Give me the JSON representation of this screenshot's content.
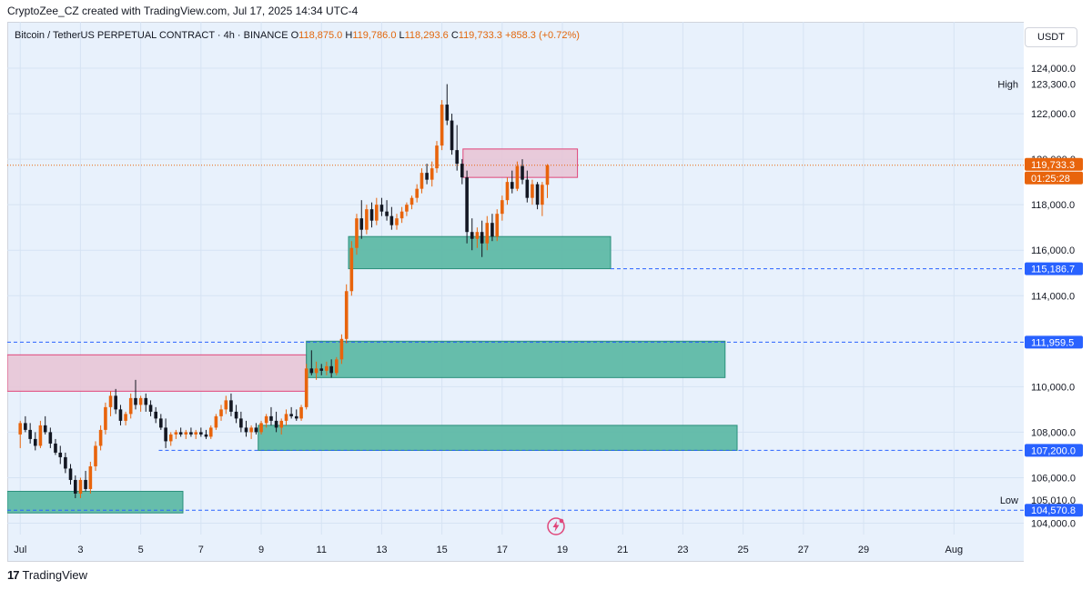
{
  "header": {
    "author_line": "CryptoZee_CZ created with TradingView.com, Jul 17, 2025 14:34 UTC-4"
  },
  "legend": {
    "symbol": "Bitcoin / TetherUS PERPETUAL CONTRACT · 4h · BINANCE",
    "o_label": "O",
    "o_value": "118,875.0",
    "h_label": "H",
    "h_value": "119,786.0",
    "l_label": "L",
    "l_value": "118,293.6",
    "c_label": "C",
    "c_value": "119,733.3",
    "change": "+858.3 (+0.72%)"
  },
  "currency_button": "USDT",
  "footer": {
    "logo_text": "TradingView"
  },
  "colors": {
    "up": "#e8640c",
    "down": "#131722",
    "supply_zone": "#e7c3d4",
    "supply_border": "#e0467a",
    "demand_zone": "#5fb9a7",
    "demand_border": "#2a8f7b",
    "price_label": "#e8640c",
    "level_label": "#2962ff",
    "background": "#e8f1fc"
  },
  "chart_data": {
    "type": "candlestick",
    "symbol": "BTCUSDT.P",
    "interval": "4h",
    "ylim": [
      103500,
      125800
    ],
    "y_ticks": [
      "124,000.0",
      "122,000.0",
      "120,000.0",
      "118,000.0",
      "116,000.0",
      "114,000.0",
      "110,000.0",
      "108,000.0",
      "106,000.0",
      "104,000.0"
    ],
    "x_ticks": [
      "Jul",
      "3",
      "5",
      "7",
      "9",
      "11",
      "13",
      "15",
      "17",
      "19",
      "21",
      "23",
      "25",
      "27",
      "29",
      "Aug"
    ],
    "price_labels": [
      {
        "text": "119,733.3",
        "value": 119733.3,
        "kind": "last"
      },
      {
        "text": "01:25:28",
        "value": 119733.3,
        "kind": "countdown"
      },
      {
        "text": "115,186.7",
        "value": 115186.7,
        "kind": "level"
      },
      {
        "text": "111,959.5",
        "value": 111959.5,
        "kind": "level"
      },
      {
        "text": "107,200.0",
        "value": 107200,
        "kind": "level"
      },
      {
        "text": "104,570.8",
        "value": 104570.8,
        "kind": "level"
      }
    ],
    "extremes": [
      {
        "label": "High",
        "price_text": "123,300.0",
        "value": 123300
      },
      {
        "label": "Low",
        "price_text": "105,010.0",
        "value": 105010
      }
    ],
    "hlines": [
      {
        "value": 115186.7,
        "from_day": 19.6
      },
      {
        "value": 111959.5,
        "from_day": 0
      },
      {
        "value": 107200.0,
        "from_day": 4.6
      },
      {
        "value": 104570.8,
        "from_day": 0
      }
    ],
    "zones": [
      {
        "type": "supply",
        "from_day": 0,
        "to_day": 9.5,
        "top": 111400,
        "bottom": 109800
      },
      {
        "type": "supply",
        "from_day": 14.7,
        "to_day": 18.5,
        "top": 120450,
        "bottom": 119200
      },
      {
        "type": "demand",
        "from_day": 10.9,
        "to_day": 19.6,
        "top": 116600,
        "bottom": 115186.7
      },
      {
        "type": "demand",
        "from_day": 9.5,
        "to_day": 23.4,
        "top": 112000,
        "bottom": 110400
      },
      {
        "type": "demand",
        "from_day": 7.9,
        "to_day": 23.8,
        "top": 108300,
        "bottom": 107200
      },
      {
        "type": "demand",
        "from_day": 0,
        "to_day": 5.4,
        "top": 105400,
        "bottom": 104450
      }
    ],
    "candles": [
      [
        0.0,
        107900,
        108500,
        107300,
        108400
      ],
      [
        0.17,
        108400,
        108700,
        108000,
        108100
      ],
      [
        0.33,
        108100,
        108400,
        107500,
        107700
      ],
      [
        0.5,
        107700,
        108000,
        107200,
        107400
      ],
      [
        0.67,
        107400,
        108500,
        107300,
        108300
      ],
      [
        0.83,
        108300,
        108700,
        107900,
        108000
      ],
      [
        1.0,
        108000,
        108200,
        107300,
        107500
      ],
      [
        1.17,
        107500,
        107700,
        107000,
        107100
      ],
      [
        1.33,
        107100,
        107400,
        106600,
        106900
      ],
      [
        1.5,
        106900,
        107100,
        106200,
        106400
      ],
      [
        1.67,
        106400,
        106600,
        105700,
        105900
      ],
      [
        1.83,
        105900,
        106100,
        105100,
        105300
      ],
      [
        2.0,
        105300,
        106000,
        105100,
        105900
      ],
      [
        2.17,
        105900,
        106300,
        105400,
        105500
      ],
      [
        2.33,
        105500,
        106700,
        105300,
        106500
      ],
      [
        2.5,
        106500,
        107600,
        106300,
        107400
      ],
      [
        2.67,
        107400,
        108300,
        107200,
        108100
      ],
      [
        2.83,
        108100,
        109300,
        107900,
        109100
      ],
      [
        3.0,
        109100,
        109800,
        108700,
        109600
      ],
      [
        3.17,
        109600,
        109900,
        108800,
        109000
      ],
      [
        3.33,
        109000,
        109200,
        108300,
        108500
      ],
      [
        3.5,
        108500,
        108900,
        108300,
        108800
      ],
      [
        3.67,
        108800,
        109700,
        108600,
        109500
      ],
      [
        3.83,
        109500,
        110300,
        109000,
        109200
      ],
      [
        4.0,
        109200,
        109600,
        108900,
        109500
      ],
      [
        4.17,
        109500,
        109700,
        108900,
        109200
      ],
      [
        4.33,
        109200,
        109400,
        108700,
        108900
      ],
      [
        4.5,
        108900,
        109100,
        108400,
        108600
      ],
      [
        4.67,
        108600,
        108800,
        108100,
        108200
      ],
      [
        4.83,
        108200,
        108600,
        107300,
        107600
      ],
      [
        5.0,
        107600,
        108000,
        107400,
        107900
      ],
      [
        5.17,
        107900,
        108100,
        107700,
        108000
      ],
      [
        5.33,
        108000,
        108200,
        107800,
        107900
      ],
      [
        5.5,
        107900,
        108100,
        107700,
        108000
      ],
      [
        5.67,
        108000,
        108200,
        107800,
        107900
      ],
      [
        5.83,
        107900,
        108100,
        107700,
        108000
      ],
      [
        6.0,
        108000,
        108200,
        107800,
        107900
      ],
      [
        6.17,
        107900,
        108100,
        107700,
        107800
      ],
      [
        6.33,
        107800,
        108300,
        107700,
        108200
      ],
      [
        6.5,
        108200,
        108800,
        108100,
        108700
      ],
      [
        6.67,
        108700,
        109200,
        108500,
        109000
      ],
      [
        6.83,
        109000,
        109600,
        108800,
        109400
      ],
      [
        7.0,
        109400,
        109700,
        108700,
        108900
      ],
      [
        7.17,
        108900,
        109200,
        108400,
        108600
      ],
      [
        7.33,
        108600,
        108900,
        108000,
        108200
      ],
      [
        7.5,
        108200,
        108500,
        107800,
        108000
      ],
      [
        7.67,
        108000,
        108300,
        107700,
        108200
      ],
      [
        7.83,
        108200,
        108400,
        107900,
        108000
      ],
      [
        8.0,
        108000,
        108500,
        107900,
        108400
      ],
      [
        8.17,
        108400,
        108800,
        108200,
        108700
      ],
      [
        8.33,
        108700,
        109100,
        108300,
        108500
      ],
      [
        8.5,
        108500,
        108900,
        108000,
        108200
      ],
      [
        8.67,
        108200,
        108600,
        107900,
        108500
      ],
      [
        8.83,
        108500,
        109000,
        108300,
        108800
      ],
      [
        9.0,
        108800,
        109100,
        108600,
        108700
      ],
      [
        9.17,
        108700,
        109000,
        108500,
        108600
      ],
      [
        9.33,
        108600,
        109200,
        108500,
        109100
      ],
      [
        9.5,
        109100,
        111000,
        109000,
        110800
      ],
      [
        9.67,
        110800,
        111600,
        110500,
        110600
      ],
      [
        9.83,
        110600,
        111100,
        110300,
        110800
      ],
      [
        10.0,
        110800,
        111000,
        110500,
        110700
      ],
      [
        10.17,
        110700,
        111100,
        110500,
        110900
      ],
      [
        10.33,
        110900,
        111200,
        110400,
        110600
      ],
      [
        10.5,
        110600,
        111300,
        110500,
        111200
      ],
      [
        10.67,
        111200,
        112300,
        111000,
        112100
      ],
      [
        10.83,
        112100,
        114500,
        111900,
        114200
      ],
      [
        11.0,
        114200,
        116400,
        114000,
        116100
      ],
      [
        11.17,
        116100,
        117600,
        115800,
        117400
      ],
      [
        11.33,
        117400,
        118200,
        116500,
        116900
      ],
      [
        11.5,
        116900,
        118000,
        116700,
        117800
      ],
      [
        11.67,
        117800,
        118100,
        117000,
        117300
      ],
      [
        11.83,
        117300,
        118300,
        117100,
        118000
      ],
      [
        12.0,
        118000,
        118300,
        117500,
        117700
      ],
      [
        12.17,
        117700,
        118200,
        117300,
        117500
      ],
      [
        12.33,
        117500,
        117900,
        116900,
        117100
      ],
      [
        12.5,
        117100,
        117600,
        116900,
        117400
      ],
      [
        12.67,
        117400,
        117900,
        117200,
        117700
      ],
      [
        12.83,
        117700,
        118100,
        117500,
        118000
      ],
      [
        13.0,
        118000,
        118400,
        117800,
        118300
      ],
      [
        13.17,
        118300,
        118900,
        118100,
        118700
      ],
      [
        13.33,
        118700,
        119600,
        118500,
        119400
      ],
      [
        13.5,
        119400,
        119800,
        118900,
        119100
      ],
      [
        13.67,
        119100,
        119900,
        118800,
        119600
      ],
      [
        13.83,
        119600,
        120800,
        119400,
        120600
      ],
      [
        14.0,
        120600,
        122600,
        120400,
        122400
      ],
      [
        14.17,
        122400,
        123300,
        121500,
        121700
      ],
      [
        14.33,
        121700,
        122000,
        120200,
        120400
      ],
      [
        14.5,
        120400,
        121500,
        119500,
        119800
      ],
      [
        14.67,
        119800,
        120000,
        118900,
        119200
      ],
      [
        14.83,
        119200,
        119500,
        116300,
        116800
      ],
      [
        15.0,
        116800,
        117400,
        116000,
        116500
      ],
      [
        15.17,
        116500,
        117000,
        116100,
        116800
      ],
      [
        15.33,
        116800,
        117300,
        115700,
        116300
      ],
      [
        15.5,
        116300,
        117500,
        116000,
        117200
      ],
      [
        15.67,
        117200,
        117600,
        116400,
        116600
      ],
      [
        15.83,
        116600,
        117800,
        116400,
        117600
      ],
      [
        16.0,
        117600,
        118400,
        117300,
        118200
      ],
      [
        16.17,
        118200,
        119200,
        118000,
        119000
      ],
      [
        16.33,
        119000,
        119500,
        118500,
        118700
      ],
      [
        16.5,
        118700,
        119900,
        118600,
        119700
      ],
      [
        16.67,
        119700,
        120000,
        118900,
        119100
      ],
      [
        16.83,
        119100,
        119500,
        118100,
        118300
      ],
      [
        17.0,
        118300,
        119100,
        118000,
        118900
      ],
      [
        17.17,
        118900,
        119000,
        117800,
        118000
      ],
      [
        17.33,
        118000,
        119000,
        117500,
        118875
      ],
      [
        17.5,
        118875,
        119786,
        118293.6,
        119733.3
      ]
    ]
  }
}
